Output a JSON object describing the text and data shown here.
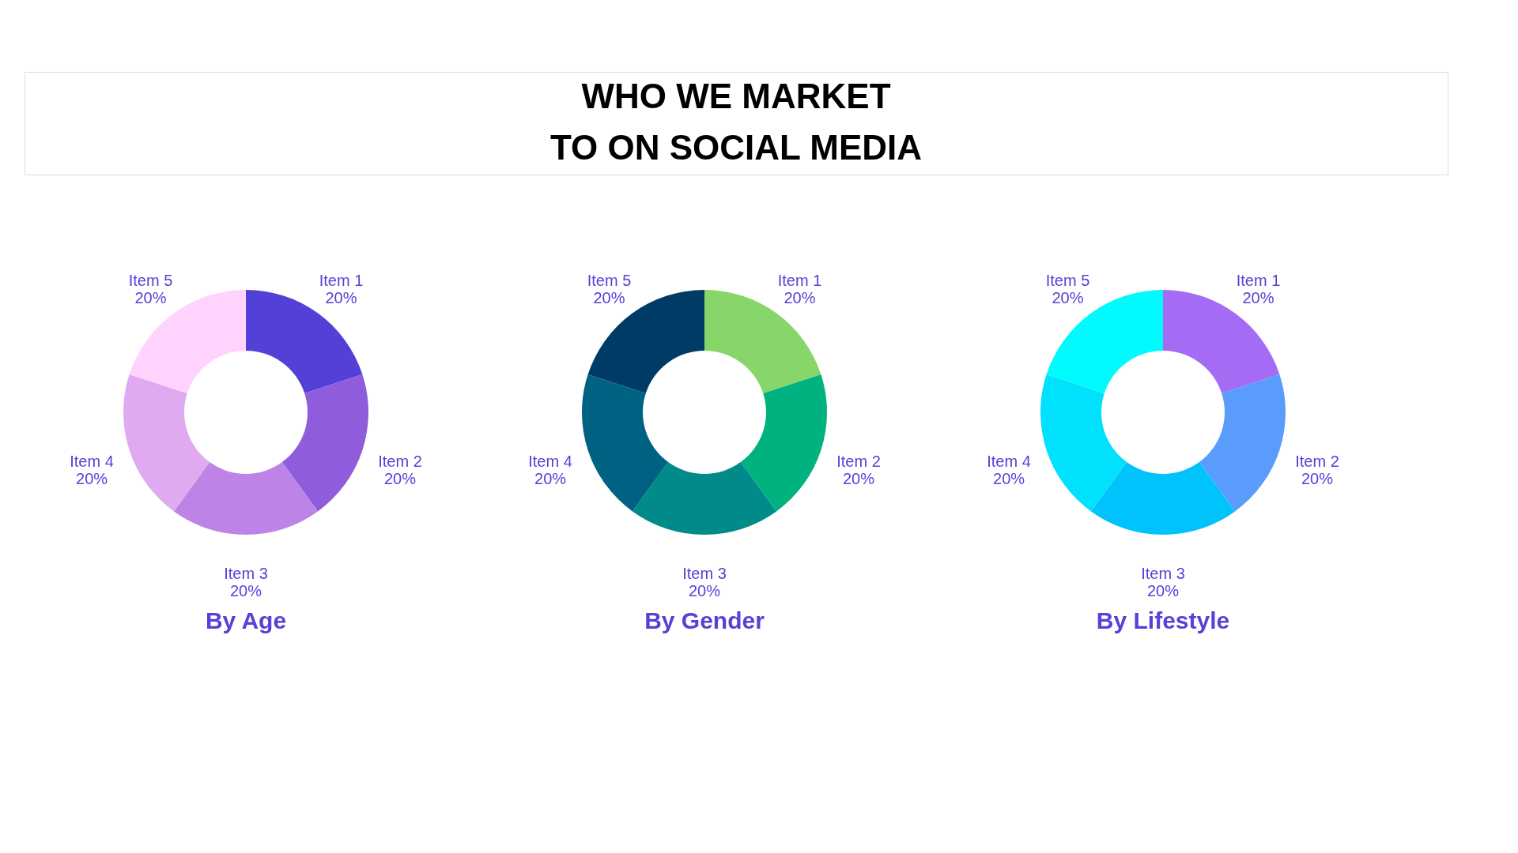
{
  "chart_data": [
    {
      "type": "other",
      "title": "WHO WE MARKET\nTO ON SOCIAL MEDIA"
    },
    {
      "type": "donut",
      "title": "By Age",
      "categories": [
        "Item 1",
        "Item 2",
        "Item 3",
        "Item 4",
        "Item 5"
      ],
      "values": [
        20,
        20,
        20,
        20,
        20
      ],
      "value_labels": [
        "20%",
        "20%",
        "20%",
        "20%",
        "20%"
      ],
      "colors": [
        "#5340d6",
        "#8f5ddc",
        "#bd83e6",
        "#e0aaf0",
        "#ffd3fd"
      ]
    },
    {
      "type": "donut",
      "title": "By Gender",
      "categories": [
        "Item 1",
        "Item 2",
        "Item 3",
        "Item 4",
        "Item 5"
      ],
      "values": [
        20,
        20,
        20,
        20,
        20
      ],
      "value_labels": [
        "20%",
        "20%",
        "20%",
        "20%",
        "20%"
      ],
      "colors": [
        "#88d66a",
        "#00b27f",
        "#008b8a",
        "#006283",
        "#003b66"
      ]
    },
    {
      "type": "donut",
      "title": "By Lifestyle",
      "categories": [
        "Item 1",
        "Item 2",
        "Item 3",
        "Item 4",
        "Item 5"
      ],
      "values": [
        20,
        20,
        20,
        20,
        20
      ],
      "value_labels": [
        "20%",
        "20%",
        "20%",
        "20%",
        "20%"
      ],
      "colors": [
        "#a46cf5",
        "#5a9cfb",
        "#00c3fc",
        "#00e1fd",
        "#00fbfe"
      ]
    }
  ]
}
